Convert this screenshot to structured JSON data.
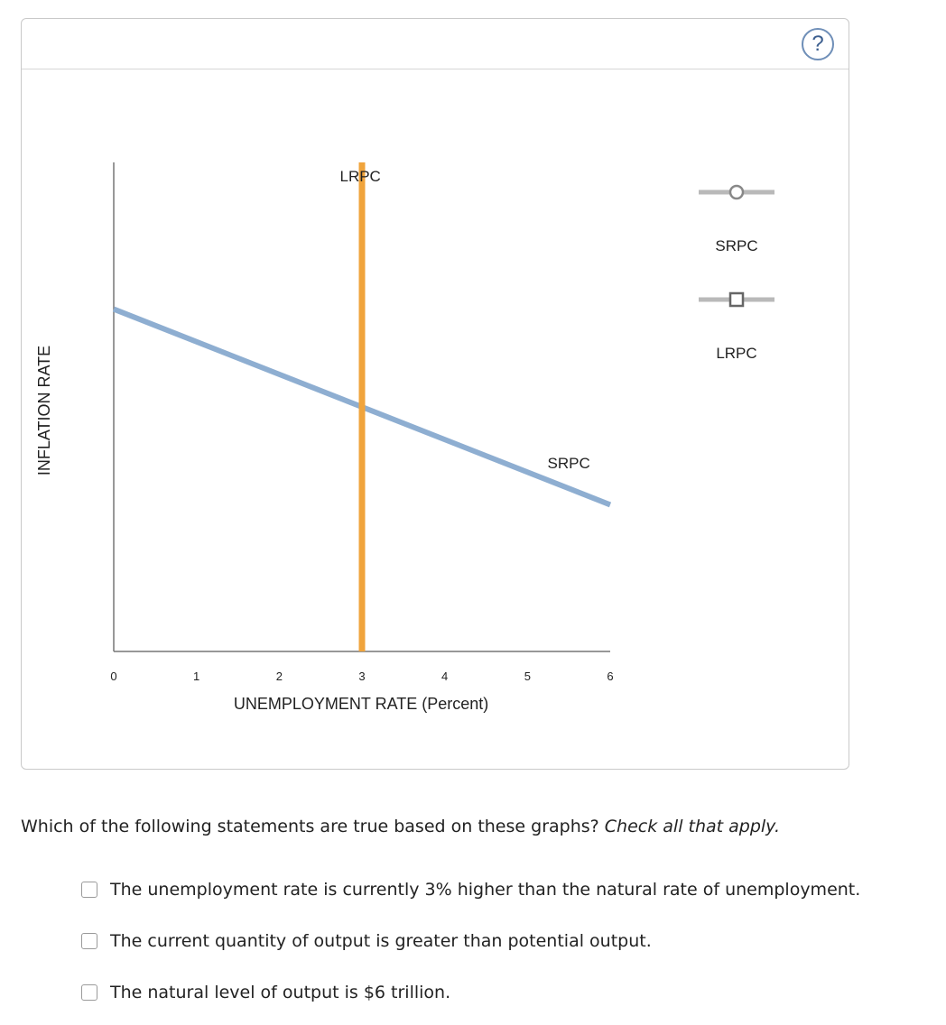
{
  "panel": {
    "help_label": "?"
  },
  "chart_data": {
    "type": "line",
    "title": "",
    "xlabel": "UNEMPLOYMENT RATE (Percent)",
    "ylabel": "INFLATION RATE",
    "xlim": [
      0,
      6
    ],
    "ylim": [
      0,
      12
    ],
    "xticks": [
      "0",
      "1",
      "2",
      "3",
      "4",
      "5",
      "6"
    ],
    "grid": false,
    "series": [
      {
        "name": "SRPC",
        "color": "#8eaed1",
        "x": [
          0,
          6
        ],
        "y": [
          8.4,
          3.6
        ],
        "label": "SRPC"
      },
      {
        "name": "LRPC",
        "color": "#f0a43c",
        "x": [
          3,
          3
        ],
        "y": [
          0,
          12
        ],
        "label": "LRPC"
      }
    ],
    "legend": {
      "placement": "right",
      "entries": [
        {
          "label": "SRPC",
          "marker": "circle"
        },
        {
          "label": "LRPC",
          "marker": "square"
        }
      ]
    }
  },
  "question": {
    "text": "Which of the following statements are true based on these graphs?",
    "instruction": "Check all that apply."
  },
  "options": [
    {
      "label": "The unemployment rate is currently 3% higher than the natural rate of unemployment."
    },
    {
      "label": "The current quantity of output is greater than potential output."
    },
    {
      "label": "The natural level of output is $6 trillion."
    }
  ]
}
